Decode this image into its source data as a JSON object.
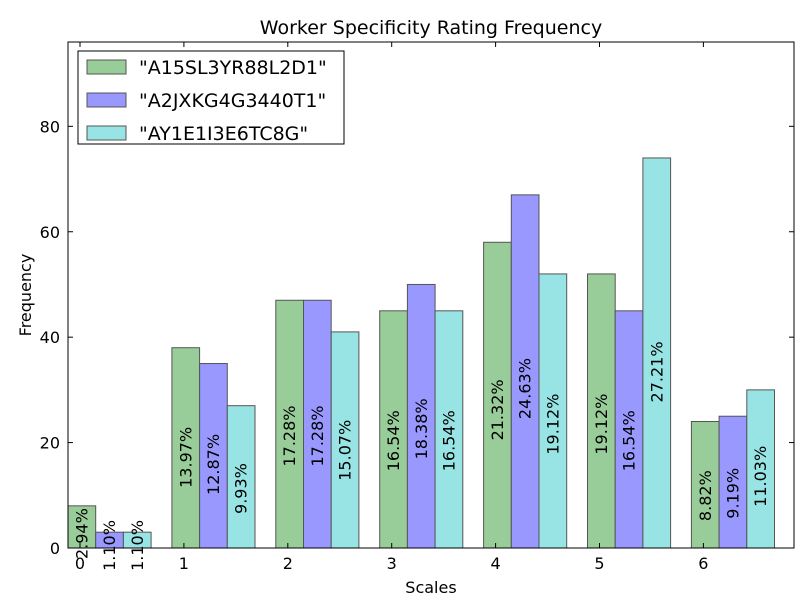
{
  "chart_data": {
    "type": "bar",
    "title": "Worker Specificity Rating Frequency",
    "xlabel": "Scales",
    "ylabel": "Frequency",
    "categories": [
      "0",
      "1",
      "2",
      "3",
      "4",
      "5",
      "6"
    ],
    "ylim": [
      0,
      96
    ],
    "yticks": [
      "0",
      "20",
      "40",
      "60",
      "80"
    ],
    "legend_position": "top-left",
    "grid": false,
    "series": [
      {
        "name": "\"A15SL3YR88L2D1\"",
        "color": "#98cc98",
        "values": [
          8,
          38,
          47,
          45,
          58,
          52,
          24
        ],
        "labels": [
          "2.94%",
          "13.97%",
          "17.28%",
          "16.54%",
          "21.32%",
          "19.12%",
          "8.82%"
        ]
      },
      {
        "name": "\"A2JXKG4G3440T1\"",
        "color": "#9898fe",
        "values": [
          3,
          35,
          47,
          50,
          67,
          45,
          25
        ],
        "labels": [
          "1.10%",
          "12.87%",
          "17.28%",
          "18.38%",
          "24.63%",
          "16.54%",
          "9.19%"
        ]
      },
      {
        "name": "\"AY1E1I3E6TC8G\"",
        "color": "#98e4e4",
        "values": [
          3,
          27,
          41,
          45,
          52,
          74,
          30
        ],
        "labels": [
          "1.10%",
          "9.93%",
          "15.07%",
          "16.54%",
          "19.12%",
          "27.21%",
          "11.03%"
        ]
      }
    ]
  }
}
